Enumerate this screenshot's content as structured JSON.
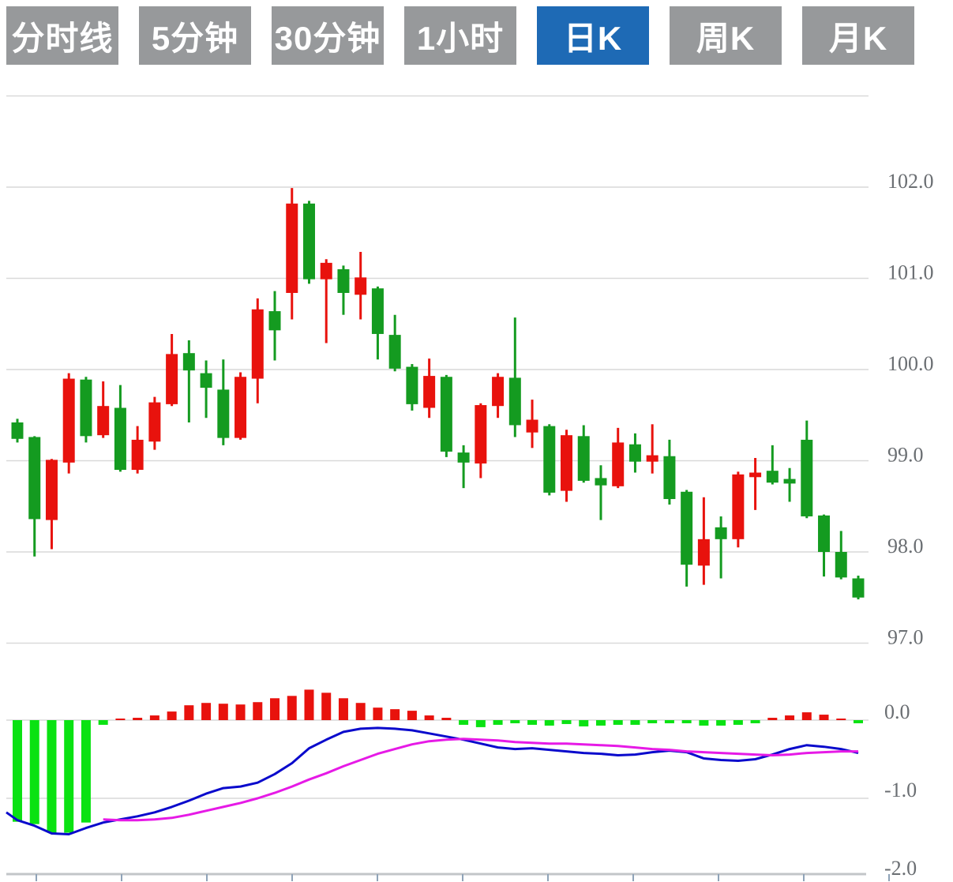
{
  "tabs": {
    "items": [
      {
        "label": "分时线",
        "active": false
      },
      {
        "label": "5分钟",
        "active": false
      },
      {
        "label": "30分钟",
        "active": false
      },
      {
        "label": "1小时",
        "active": false
      },
      {
        "label": "日K",
        "active": true
      },
      {
        "label": "周K",
        "active": false
      },
      {
        "label": "月K",
        "active": false
      }
    ]
  },
  "colors": {
    "tab_gray": "#97999b",
    "tab_active": "#1e6ab5",
    "candle_up": "#e8120d",
    "candle_down": "#149b20",
    "hist_up": "#e8120d",
    "hist_down": "#0ae212",
    "dif_line": "#0a0acc",
    "dea_line": "#e61ae6",
    "gridline": "#d9d9d9",
    "axis_line": "#c2c5c8",
    "tick_mark": "#8fa3b8",
    "label_text": "#6a6e72"
  },
  "chart_data": {
    "type": "candlestick",
    "title": "",
    "price_axis": {
      "gridline_values": [
        103,
        102,
        101,
        100,
        99,
        98,
        97
      ],
      "labels": [
        {
          "value": 102,
          "text": "102.0"
        },
        {
          "value": 101,
          "text": "101.0"
        },
        {
          "value": 100,
          "text": "100.0"
        },
        {
          "value": 99,
          "text": "99.0"
        },
        {
          "value": 98,
          "text": "98.0"
        },
        {
          "value": 97,
          "text": "97.0"
        }
      ]
    },
    "macd_axis": {
      "gridline_values": [
        0,
        -1
      ],
      "labels": [
        {
          "value": 0,
          "text": "0.0"
        },
        {
          "value": -1,
          "text": "-1.0"
        },
        {
          "value": -2,
          "text": "-2.0"
        }
      ]
    },
    "x_axis": {
      "tick_count": 11,
      "labels_visible": false
    },
    "ohlc": [
      [
        99.42,
        99.46,
        99.2,
        99.24
      ],
      [
        99.26,
        99.27,
        97.95,
        98.36
      ],
      [
        98.35,
        99.02,
        98.03,
        99.01
      ],
      [
        98.98,
        99.96,
        98.86,
        99.9
      ],
      [
        99.89,
        99.92,
        99.2,
        99.27
      ],
      [
        99.28,
        99.87,
        99.25,
        99.6
      ],
      [
        99.58,
        99.83,
        98.88,
        98.9
      ],
      [
        98.9,
        99.38,
        98.86,
        99.23
      ],
      [
        99.21,
        99.7,
        99.12,
        99.64
      ],
      [
        99.62,
        100.39,
        99.6,
        100.17
      ],
      [
        100.18,
        100.32,
        99.42,
        99.99
      ],
      [
        99.96,
        100.1,
        99.47,
        99.8
      ],
      [
        99.78,
        100.11,
        99.17,
        99.25
      ],
      [
        99.25,
        99.97,
        99.23,
        99.92
      ],
      [
        99.9,
        100.78,
        99.63,
        100.66
      ],
      [
        100.64,
        100.86,
        100.1,
        100.43
      ],
      [
        100.84,
        101.99,
        100.55,
        101.82
      ],
      [
        101.82,
        101.85,
        100.94,
        100.99
      ],
      [
        100.99,
        101.21,
        100.29,
        101.17
      ],
      [
        101.1,
        101.14,
        100.6,
        100.84
      ],
      [
        100.82,
        101.29,
        100.55,
        101.01
      ],
      [
        100.89,
        100.91,
        100.11,
        100.39
      ],
      [
        100.38,
        100.6,
        99.98,
        100.01
      ],
      [
        100.03,
        100.06,
        99.55,
        99.62
      ],
      [
        99.58,
        100.12,
        99.47,
        99.93
      ],
      [
        99.92,
        99.94,
        99.04,
        99.1
      ],
      [
        99.09,
        99.17,
        98.7,
        98.98
      ],
      [
        98.97,
        99.63,
        98.81,
        99.61
      ],
      [
        99.6,
        99.96,
        99.47,
        99.92
      ],
      [
        99.91,
        100.57,
        99.26,
        99.39
      ],
      [
        99.31,
        99.67,
        99.14,
        99.45
      ],
      [
        99.38,
        99.4,
        98.62,
        98.65
      ],
      [
        98.67,
        99.34,
        98.55,
        99.28
      ],
      [
        99.27,
        99.39,
        98.76,
        98.78
      ],
      [
        98.81,
        98.95,
        98.35,
        98.73
      ],
      [
        98.72,
        99.36,
        98.7,
        99.2
      ],
      [
        99.18,
        99.3,
        98.87,
        98.99
      ],
      [
        98.99,
        99.4,
        98.86,
        99.06
      ],
      [
        99.05,
        99.23,
        98.52,
        98.58
      ],
      [
        98.66,
        98.68,
        97.62,
        97.86
      ],
      [
        97.85,
        98.6,
        97.64,
        98.14
      ],
      [
        98.27,
        98.39,
        97.71,
        98.14
      ],
      [
        98.14,
        98.88,
        98.05,
        98.85
      ],
      [
        98.82,
        99.03,
        98.46,
        98.87
      ],
      [
        98.89,
        99.17,
        98.74,
        98.76
      ],
      [
        98.8,
        98.92,
        98.55,
        98.75
      ],
      [
        99.23,
        99.44,
        98.37,
        98.39
      ],
      [
        98.4,
        98.41,
        97.73,
        98.0
      ],
      [
        98.0,
        98.23,
        97.7,
        97.72
      ],
      [
        97.71,
        97.74,
        97.48,
        97.5
      ]
    ],
    "macd": {
      "hist": [
        -1.3,
        -1.33,
        -1.44,
        -1.44,
        -1.31,
        -0.06,
        0.01,
        0.03,
        0.06,
        0.11,
        0.19,
        0.22,
        0.21,
        0.2,
        0.23,
        0.28,
        0.31,
        0.39,
        0.35,
        0.28,
        0.22,
        0.16,
        0.14,
        0.12,
        0.06,
        0.03,
        -0.06,
        -0.09,
        -0.06,
        -0.04,
        -0.06,
        -0.07,
        -0.05,
        -0.08,
        -0.07,
        -0.06,
        -0.06,
        -0.04,
        -0.04,
        -0.04,
        -0.07,
        -0.07,
        -0.06,
        -0.04,
        0.03,
        0.06,
        0.1,
        0.07,
        0.02,
        -0.04
      ],
      "dif": [
        -1.28,
        -1.35,
        -1.45,
        -1.46,
        -1.38,
        -1.31,
        -1.27,
        -1.23,
        -1.18,
        -1.11,
        -1.03,
        -0.94,
        -0.87,
        -0.85,
        -0.8,
        -0.69,
        -0.55,
        -0.36,
        -0.25,
        -0.15,
        -0.11,
        -0.1,
        -0.11,
        -0.13,
        -0.17,
        -0.21,
        -0.25,
        -0.3,
        -0.35,
        -0.37,
        -0.36,
        -0.38,
        -0.4,
        -0.42,
        -0.43,
        -0.45,
        -0.44,
        -0.41,
        -0.39,
        -0.41,
        -0.49,
        -0.51,
        -0.52,
        -0.5,
        -0.44,
        -0.37,
        -0.32,
        -0.34,
        -0.37,
        -0.42
      ],
      "dif_lead": -1.18,
      "dea": [
        null,
        null,
        null,
        null,
        null,
        -1.27,
        -1.28,
        -1.28,
        -1.27,
        -1.25,
        -1.21,
        -1.16,
        -1.11,
        -1.06,
        -1.0,
        -0.93,
        -0.85,
        -0.76,
        -0.68,
        -0.59,
        -0.51,
        -0.43,
        -0.37,
        -0.31,
        -0.27,
        -0.25,
        -0.24,
        -0.25,
        -0.26,
        -0.28,
        -0.29,
        -0.3,
        -0.3,
        -0.31,
        -0.32,
        -0.33,
        -0.35,
        -0.37,
        -0.38,
        -0.4,
        -0.41,
        -0.42,
        -0.43,
        -0.44,
        -0.45,
        -0.44,
        -0.42,
        -0.41,
        -0.4,
        -0.4
      ]
    }
  }
}
